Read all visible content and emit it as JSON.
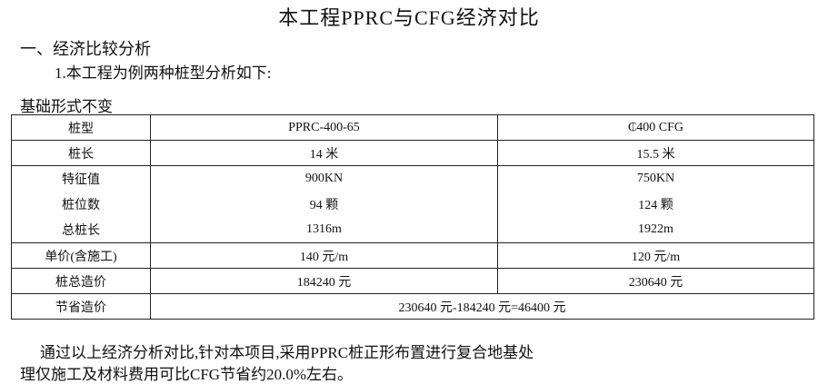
{
  "title": "本工程PPRC与CFG经济对比",
  "section_heading": "一、经济比较分析",
  "subheading": "1.本工程为例两种桩型分析如下:",
  "table_caption": "基础形式不变",
  "table": {
    "rows": [
      {
        "label": "桩型",
        "ppr": "PPRC-400-65",
        "cfg": "₵400 CFG"
      },
      {
        "label": "桩长",
        "ppr": "14 米",
        "cfg": "15.5 米"
      },
      {
        "label": "特征值",
        "ppr": "900KN",
        "cfg": "750KN"
      },
      {
        "label": "桩位数",
        "ppr": "94 颗",
        "cfg": "124 颗"
      },
      {
        "label": "总桩长",
        "ppr": "1316m",
        "cfg": "1922m"
      },
      {
        "label": "单价(含施工)",
        "ppr": "140 元/m",
        "cfg": "120 元/m"
      },
      {
        "label": "桩总造价",
        "ppr": "184240 元",
        "cfg": "230640 元"
      }
    ],
    "savings": {
      "label": "节省造价",
      "value": "230640 元-184240 元=46400 元"
    }
  },
  "conclusion": {
    "line1": "通过以上经济分析对比,针对本项目,采用PPRC桩正形布置进行复合地基处",
    "line2": "理仅施工及材料费用可比CFG节省约20.0%左右。"
  }
}
